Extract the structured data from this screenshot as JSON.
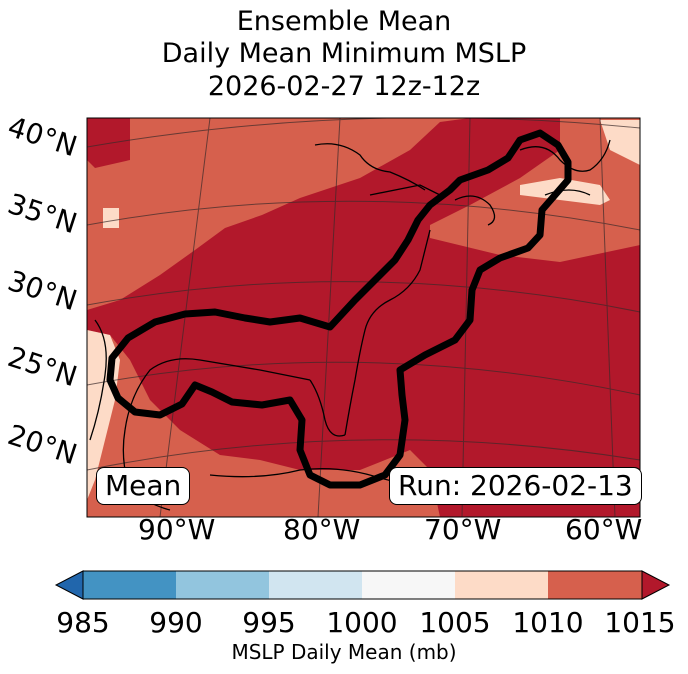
{
  "title": {
    "line1": "Ensemble Mean",
    "line2": "Daily Mean Minimum MSLP",
    "line3": "2026-02-27 12z-12z"
  },
  "labels": {
    "mean_box": "Mean",
    "run_box": "Run: 2026-02-13"
  },
  "lat_labels": [
    "40°N",
    "35°N",
    "30°N",
    "25°N",
    "20°N"
  ],
  "lon_labels": [
    "90°W",
    "80°W",
    "70°W",
    "60°W"
  ],
  "colorbar": {
    "ticks": [
      "985",
      "990",
      "995",
      "1000",
      "1005",
      "1010",
      "1015"
    ],
    "label": "MSLP Daily Mean (mb)",
    "bin_colors": [
      "#4393c3",
      "#92c5de",
      "#d1e5f0",
      "#f7f7f7",
      "#fddbc7",
      "#d6604d"
    ],
    "under_color": "#2166ac",
    "over_color": "#b2182b"
  },
  "map_colors": {
    "dark": "#b2182b",
    "mid": "#d6604d",
    "light": "#fddbc7",
    "contour": "#000000"
  }
}
